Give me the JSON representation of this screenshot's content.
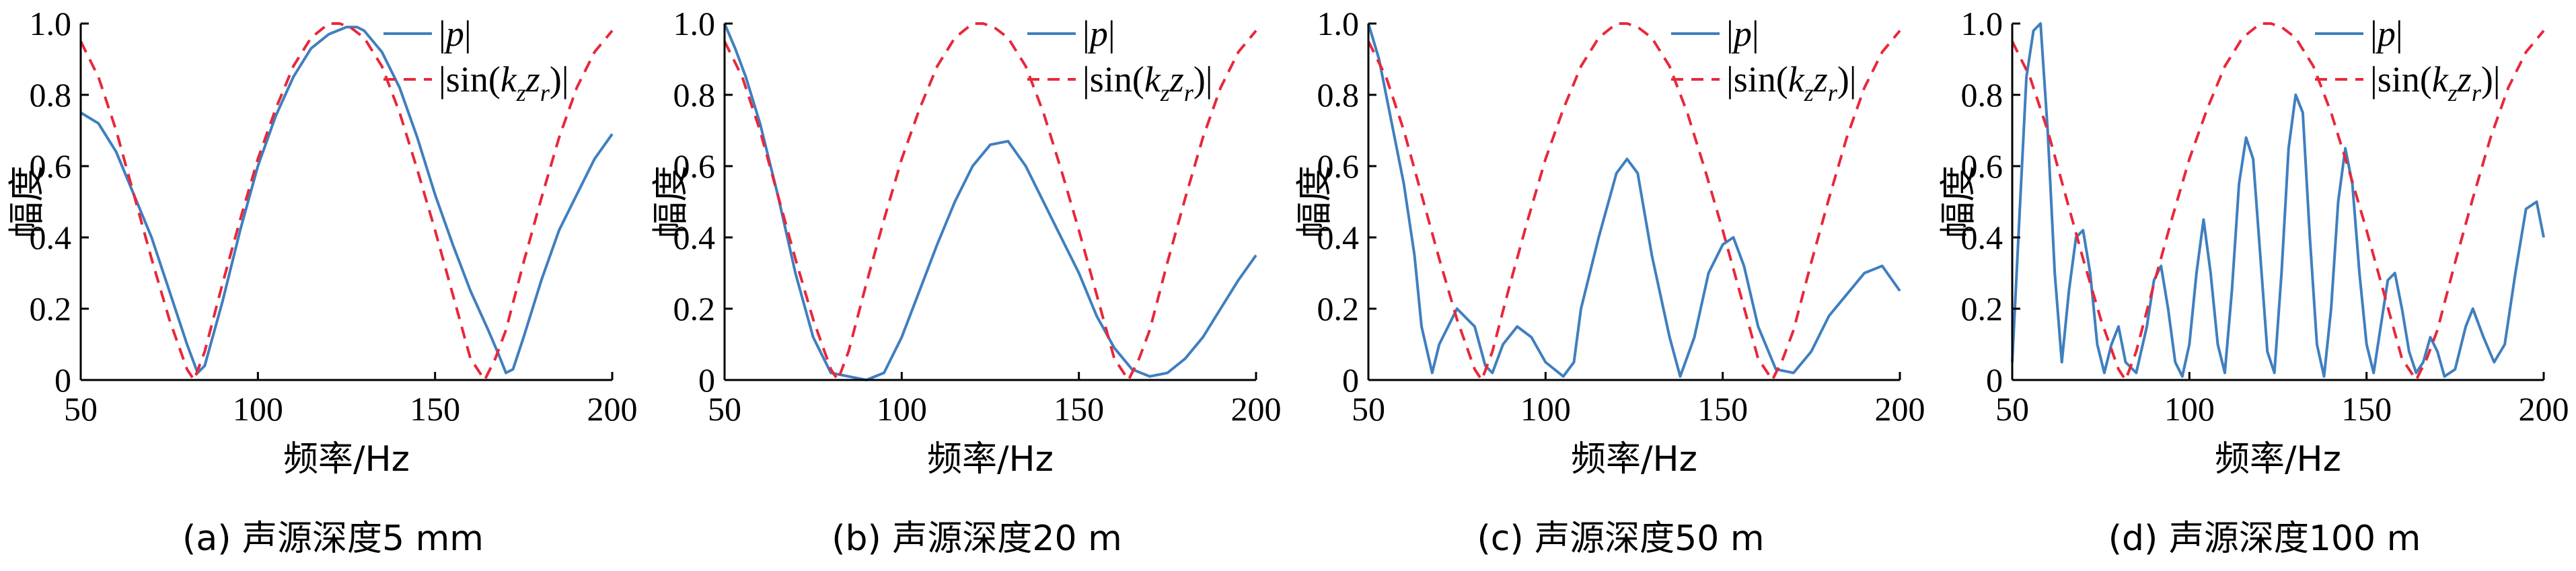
{
  "chart_data": [
    {
      "type": "line",
      "panel_label": "(a) 声源深度5 mm",
      "xlabel": "频率/Hz",
      "ylabel": "幅度",
      "xlim": [
        50,
        200
      ],
      "ylim": [
        0,
        1
      ],
      "xticks": [
        "50",
        "100",
        "150",
        "200"
      ],
      "yticks": [
        "0",
        "0.2",
        "0.4",
        "0.6",
        "0.8",
        "1.0"
      ],
      "legend": {
        "position": "top-right",
        "entries": [
          "|p|",
          "|sin(kzzr)|"
        ]
      },
      "series": [
        {
          "name": "|p|",
          "style": "solid",
          "color": "#3f7fbf",
          "x": [
            50,
            55,
            60,
            65,
            70,
            75,
            80,
            83,
            85,
            90,
            95,
            100,
            105,
            110,
            115,
            120,
            125,
            128,
            130,
            135,
            140,
            145,
            150,
            155,
            160,
            165,
            168,
            170,
            172,
            175,
            180,
            185,
            190,
            195,
            200
          ],
          "y": [
            0.75,
            0.72,
            0.64,
            0.52,
            0.4,
            0.25,
            0.1,
            0.02,
            0.04,
            0.22,
            0.42,
            0.6,
            0.74,
            0.85,
            0.93,
            0.97,
            0.99,
            0.99,
            0.98,
            0.92,
            0.82,
            0.68,
            0.52,
            0.38,
            0.25,
            0.14,
            0.07,
            0.02,
            0.03,
            0.12,
            0.28,
            0.42,
            0.52,
            0.62,
            0.69
          ]
        },
        {
          "name": "|sin(kzzr)|",
          "style": "dashed",
          "color": "#e8283a",
          "x": [
            50,
            55,
            60,
            65,
            70,
            75,
            80,
            82,
            85,
            90,
            95,
            100,
            105,
            110,
            115,
            120,
            123,
            126,
            130,
            135,
            140,
            145,
            150,
            155,
            160,
            164,
            167,
            170,
            175,
            180,
            185,
            190,
            195,
            200
          ],
          "y": [
            0.95,
            0.85,
            0.7,
            0.52,
            0.34,
            0.17,
            0.03,
            0.0,
            0.08,
            0.27,
            0.45,
            0.62,
            0.76,
            0.88,
            0.96,
            1.0,
            1.0,
            0.99,
            0.96,
            0.88,
            0.75,
            0.59,
            0.42,
            0.24,
            0.06,
            0.0,
            0.06,
            0.14,
            0.33,
            0.51,
            0.68,
            0.82,
            0.92,
            0.98
          ]
        }
      ]
    },
    {
      "type": "line",
      "panel_label": "(b) 声源深度20 m",
      "xlabel": "频率/Hz",
      "ylabel": "幅度",
      "xlim": [
        50,
        200
      ],
      "ylim": [
        0,
        1
      ],
      "xticks": [
        "50",
        "100",
        "150",
        "200"
      ],
      "yticks": [
        "0",
        "0.2",
        "0.4",
        "0.6",
        "0.8",
        "1.0"
      ],
      "legend": {
        "position": "top-right",
        "entries": [
          "|p|",
          "|sin(kzzr)|"
        ]
      },
      "series": [
        {
          "name": "|p|",
          "style": "solid",
          "color": "#3f7fbf",
          "x": [
            50,
            53,
            56,
            60,
            65,
            70,
            75,
            80,
            85,
            90,
            95,
            100,
            105,
            110,
            115,
            120,
            125,
            130,
            135,
            140,
            145,
            150,
            155,
            160,
            165,
            170,
            175,
            180,
            185,
            190,
            195,
            200
          ],
          "y": [
            1.0,
            0.93,
            0.85,
            0.72,
            0.52,
            0.3,
            0.12,
            0.02,
            0.01,
            0.0,
            0.02,
            0.12,
            0.25,
            0.38,
            0.5,
            0.6,
            0.66,
            0.67,
            0.6,
            0.5,
            0.4,
            0.3,
            0.18,
            0.09,
            0.03,
            0.01,
            0.02,
            0.06,
            0.12,
            0.2,
            0.28,
            0.35
          ]
        },
        {
          "name": "|sin(kzzr)|",
          "style": "dashed",
          "color": "#e8283a",
          "x": [
            50,
            55,
            60,
            65,
            70,
            75,
            80,
            82,
            85,
            90,
            95,
            100,
            105,
            110,
            115,
            120,
            123,
            126,
            130,
            135,
            140,
            145,
            150,
            155,
            160,
            164,
            167,
            170,
            175,
            180,
            185,
            190,
            195,
            200
          ],
          "y": [
            0.95,
            0.85,
            0.7,
            0.52,
            0.34,
            0.17,
            0.03,
            0.0,
            0.08,
            0.27,
            0.45,
            0.62,
            0.76,
            0.88,
            0.96,
            1.0,
            1.0,
            0.99,
            0.96,
            0.88,
            0.75,
            0.59,
            0.42,
            0.24,
            0.06,
            0.0,
            0.06,
            0.14,
            0.33,
            0.51,
            0.68,
            0.82,
            0.92,
            0.98
          ]
        }
      ]
    },
    {
      "type": "line",
      "panel_label": "(c) 声源深度50 m",
      "xlabel": "频率/Hz",
      "ylabel": "幅度",
      "xlim": [
        50,
        200
      ],
      "ylim": [
        0,
        1
      ],
      "xticks": [
        "50",
        "100",
        "150",
        "200"
      ],
      "yticks": [
        "0",
        "0.2",
        "0.4",
        "0.6",
        "0.8",
        "1.0"
      ],
      "legend": {
        "position": "top-right",
        "entries": [
          "|p|",
          "|sin(kzzr)|"
        ]
      },
      "series": [
        {
          "name": "|p|",
          "style": "solid",
          "color": "#3f7fbf",
          "x": [
            50,
            53,
            56,
            60,
            63,
            65,
            68,
            70,
            75,
            80,
            83,
            85,
            88,
            92,
            96,
            100,
            105,
            108,
            110,
            115,
            120,
            123,
            126,
            130,
            135,
            138,
            142,
            146,
            150,
            153,
            156,
            160,
            165,
            170,
            175,
            180,
            185,
            190,
            195,
            200
          ],
          "y": [
            1.0,
            0.9,
            0.75,
            0.55,
            0.35,
            0.15,
            0.02,
            0.1,
            0.2,
            0.15,
            0.04,
            0.02,
            0.1,
            0.15,
            0.12,
            0.05,
            0.01,
            0.05,
            0.2,
            0.4,
            0.58,
            0.62,
            0.58,
            0.35,
            0.12,
            0.01,
            0.12,
            0.3,
            0.38,
            0.4,
            0.32,
            0.15,
            0.03,
            0.02,
            0.08,
            0.18,
            0.24,
            0.3,
            0.32,
            0.25
          ]
        },
        {
          "name": "|sin(kzzr)|",
          "style": "dashed",
          "color": "#e8283a",
          "x": [
            50,
            55,
            60,
            65,
            70,
            75,
            80,
            82,
            85,
            90,
            95,
            100,
            105,
            110,
            115,
            120,
            123,
            126,
            130,
            135,
            140,
            145,
            150,
            155,
            160,
            164,
            167,
            170,
            175,
            180,
            185,
            190,
            195,
            200
          ],
          "y": [
            0.95,
            0.85,
            0.7,
            0.52,
            0.34,
            0.17,
            0.03,
            0.0,
            0.08,
            0.27,
            0.45,
            0.62,
            0.76,
            0.88,
            0.96,
            1.0,
            1.0,
            0.99,
            0.96,
            0.88,
            0.75,
            0.59,
            0.42,
            0.24,
            0.06,
            0.0,
            0.06,
            0.14,
            0.33,
            0.51,
            0.68,
            0.82,
            0.92,
            0.98
          ]
        }
      ]
    },
    {
      "type": "line",
      "panel_label": "(d) 声源深度100 m",
      "xlabel": "频率/Hz",
      "ylabel": "幅度",
      "xlim": [
        50,
        200
      ],
      "ylim": [
        0,
        1
      ],
      "xticks": [
        "50",
        "100",
        "150",
        "200"
      ],
      "yticks": [
        "0",
        "0.2",
        "0.4",
        "0.6",
        "0.8",
        "1.0"
      ],
      "legend": {
        "position": "top-right",
        "entries": [
          "|p|",
          "|sin(kzzr)|"
        ]
      },
      "series": [
        {
          "name": "|p|",
          "style": "solid",
          "color": "#3f7fbf",
          "x": [
            50,
            52,
            54,
            56,
            58,
            60,
            62,
            64,
            66,
            68,
            70,
            72,
            74,
            76,
            78,
            80,
            82,
            85,
            88,
            90,
            92,
            94,
            96,
            98,
            100,
            102,
            104,
            106,
            108,
            110,
            112,
            114,
            116,
            118,
            120,
            122,
            124,
            126,
            128,
            130,
            132,
            134,
            136,
            138,
            140,
            142,
            144,
            146,
            148,
            150,
            152,
            154,
            156,
            158,
            160,
            162,
            164,
            166,
            168,
            170,
            172,
            175,
            178,
            180,
            183,
            186,
            189,
            192,
            195,
            198,
            200
          ],
          "y": [
            0.05,
            0.45,
            0.85,
            0.98,
            1.0,
            0.7,
            0.3,
            0.05,
            0.25,
            0.4,
            0.42,
            0.3,
            0.1,
            0.02,
            0.1,
            0.15,
            0.05,
            0.02,
            0.15,
            0.28,
            0.32,
            0.2,
            0.05,
            0.01,
            0.1,
            0.3,
            0.45,
            0.3,
            0.1,
            0.02,
            0.25,
            0.55,
            0.68,
            0.62,
            0.35,
            0.08,
            0.02,
            0.3,
            0.65,
            0.8,
            0.75,
            0.4,
            0.1,
            0.01,
            0.2,
            0.5,
            0.65,
            0.55,
            0.3,
            0.1,
            0.02,
            0.15,
            0.28,
            0.3,
            0.2,
            0.08,
            0.02,
            0.05,
            0.12,
            0.08,
            0.01,
            0.03,
            0.15,
            0.2,
            0.12,
            0.05,
            0.1,
            0.3,
            0.48,
            0.5,
            0.4
          ]
        },
        {
          "name": "|sin(kzzr)|",
          "style": "dashed",
          "color": "#e8283a",
          "x": [
            50,
            55,
            60,
            65,
            70,
            75,
            80,
            82,
            85,
            90,
            95,
            100,
            105,
            110,
            115,
            120,
            123,
            126,
            130,
            135,
            140,
            145,
            150,
            155,
            160,
            164,
            167,
            170,
            175,
            180,
            185,
            190,
            195,
            200
          ],
          "y": [
            0.95,
            0.85,
            0.7,
            0.52,
            0.34,
            0.17,
            0.03,
            0.0,
            0.08,
            0.27,
            0.45,
            0.62,
            0.76,
            0.88,
            0.96,
            1.0,
            1.0,
            0.99,
            0.96,
            0.88,
            0.75,
            0.59,
            0.42,
            0.24,
            0.06,
            0.0,
            0.06,
            0.14,
            0.33,
            0.51,
            0.68,
            0.82,
            0.92,
            0.98
          ]
        }
      ]
    }
  ]
}
